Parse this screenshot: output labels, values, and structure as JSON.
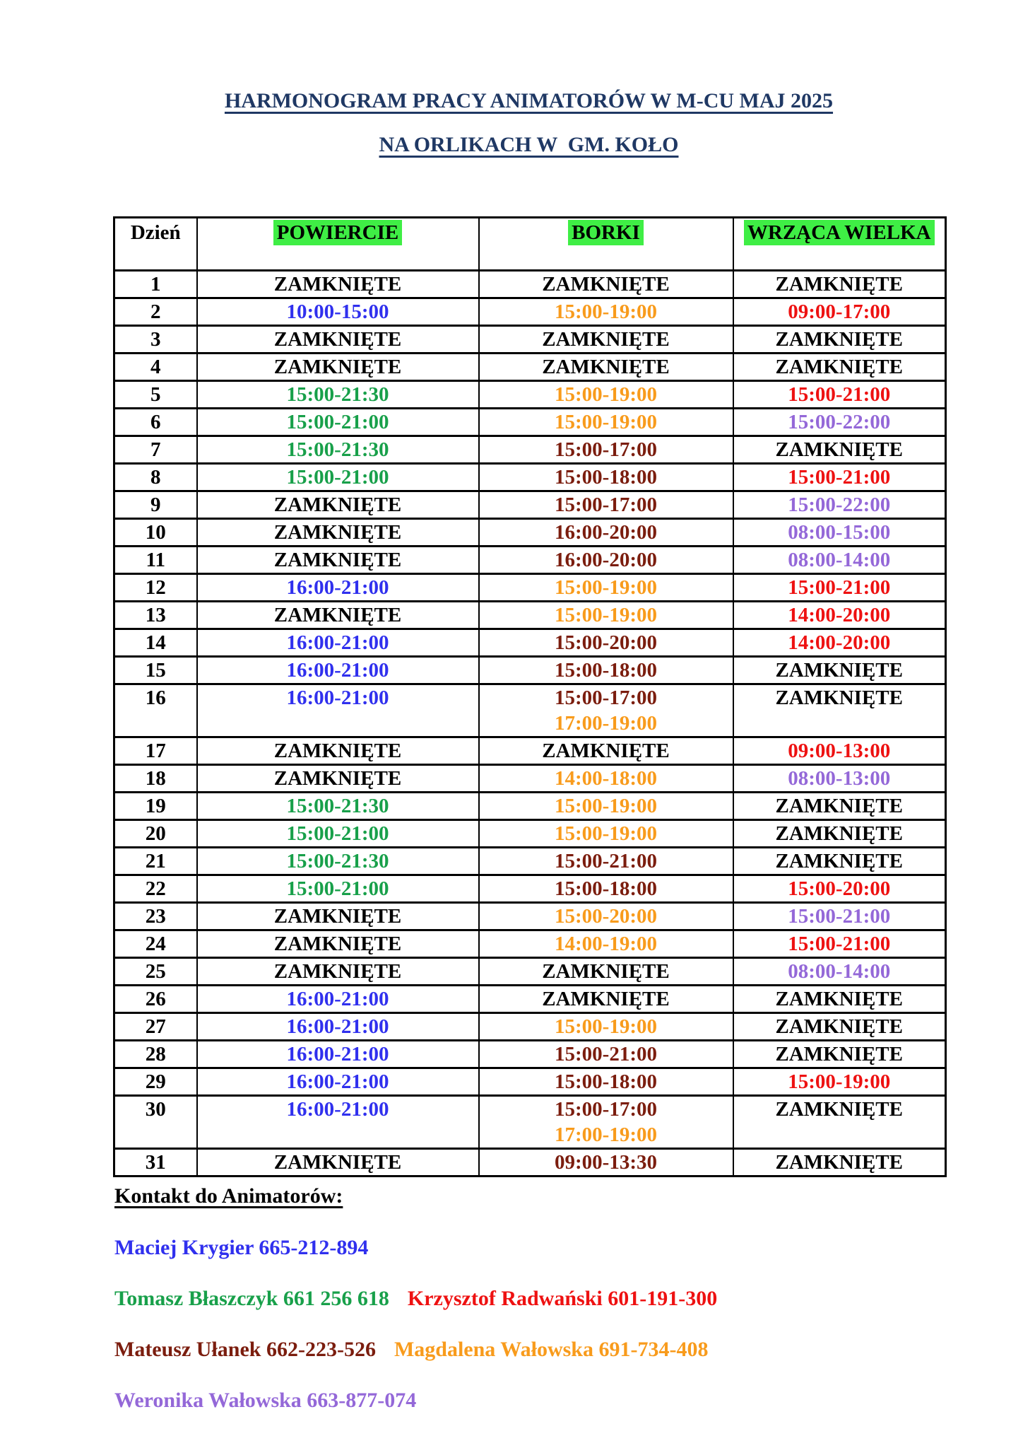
{
  "page": {
    "title_line1": "HARMONOGRAM PRACY ANIMATORÓW W M-CU MAJ 2025",
    "title_line2": "NA ORLIKACH W  GM. KOŁO"
  },
  "colors": {
    "title_navy": "#1F3864",
    "header_highlight_green": "#3FEE45",
    "black": "#000000",
    "blue": "#3030EE",
    "green": "#18A04A",
    "orange": "#F89B1C",
    "red": "#EE1111",
    "maroon": "#7B1D0E",
    "purple": "#9468D8"
  },
  "table": {
    "headers": [
      {
        "label": "Dzień",
        "highlighted": false
      },
      {
        "label": "POWIERCIE",
        "highlighted": true
      },
      {
        "label": "BORKI",
        "highlighted": true
      },
      {
        "label": "WRZĄCA WIELKA",
        "highlighted": true
      }
    ],
    "closed_label": "ZAMKNIĘTE",
    "rows": [
      {
        "day": "1",
        "cells": [
          [
            {
              "text": "ZAMKNIĘTE",
              "color": "black"
            }
          ],
          [
            {
              "text": "ZAMKNIĘTE",
              "color": "black"
            }
          ],
          [
            {
              "text": "ZAMKNIĘTE",
              "color": "black"
            }
          ]
        ]
      },
      {
        "day": "2",
        "cells": [
          [
            {
              "text": "10:00-15:00",
              "color": "blue"
            }
          ],
          [
            {
              "text": "15:00-19:00",
              "color": "orange"
            }
          ],
          [
            {
              "text": "09:00-17:00",
              "color": "red"
            }
          ]
        ]
      },
      {
        "day": "3",
        "cells": [
          [
            {
              "text": "ZAMKNIĘTE",
              "color": "black"
            }
          ],
          [
            {
              "text": "ZAMKNIĘTE",
              "color": "black"
            }
          ],
          [
            {
              "text": "ZAMKNIĘTE",
              "color": "black"
            }
          ]
        ]
      },
      {
        "day": "4",
        "cells": [
          [
            {
              "text": "ZAMKNIĘTE",
              "color": "black"
            }
          ],
          [
            {
              "text": "ZAMKNIĘTE",
              "color": "black"
            }
          ],
          [
            {
              "text": "ZAMKNIĘTE",
              "color": "black"
            }
          ]
        ]
      },
      {
        "day": "5",
        "cells": [
          [
            {
              "text": "15:00-21:30",
              "color": "green"
            }
          ],
          [
            {
              "text": "15:00-19:00",
              "color": "orange"
            }
          ],
          [
            {
              "text": "15:00-21:00",
              "color": "red"
            }
          ]
        ]
      },
      {
        "day": "6",
        "cells": [
          [
            {
              "text": "15:00-21:00",
              "color": "green"
            }
          ],
          [
            {
              "text": "15:00-19:00",
              "color": "orange"
            }
          ],
          [
            {
              "text": "15:00-22:00",
              "color": "purple"
            }
          ]
        ]
      },
      {
        "day": "7",
        "cells": [
          [
            {
              "text": "15:00-21:30",
              "color": "green"
            }
          ],
          [
            {
              "text": "15:00-17:00",
              "color": "maroon"
            }
          ],
          [
            {
              "text": "ZAMKNIĘTE",
              "color": "black"
            }
          ]
        ]
      },
      {
        "day": "8",
        "cells": [
          [
            {
              "text": "15:00-21:00",
              "color": "green"
            }
          ],
          [
            {
              "text": "15:00-18:00",
              "color": "maroon"
            }
          ],
          [
            {
              "text": "15:00-21:00",
              "color": "red"
            }
          ]
        ]
      },
      {
        "day": "9",
        "cells": [
          [
            {
              "text": "ZAMKNIĘTE",
              "color": "black"
            }
          ],
          [
            {
              "text": "15:00-17:00",
              "color": "maroon"
            }
          ],
          [
            {
              "text": "15:00-22:00",
              "color": "purple"
            }
          ]
        ]
      },
      {
        "day": "10",
        "cells": [
          [
            {
              "text": "ZAMKNIĘTE",
              "color": "black"
            }
          ],
          [
            {
              "text": "16:00-20:00",
              "color": "maroon"
            }
          ],
          [
            {
              "text": "08:00-15:00",
              "color": "purple"
            }
          ]
        ]
      },
      {
        "day": "11",
        "cells": [
          [
            {
              "text": "ZAMKNIĘTE",
              "color": "black"
            }
          ],
          [
            {
              "text": "16:00-20:00",
              "color": "maroon"
            }
          ],
          [
            {
              "text": "08:00-14:00",
              "color": "purple"
            }
          ]
        ]
      },
      {
        "day": "12",
        "cells": [
          [
            {
              "text": "16:00-21:00",
              "color": "blue"
            }
          ],
          [
            {
              "text": "15:00-19:00",
              "color": "orange"
            }
          ],
          [
            {
              "text": "15:00-21:00",
              "color": "red"
            }
          ]
        ]
      },
      {
        "day": "13",
        "cells": [
          [
            {
              "text": "ZAMKNIĘTE",
              "color": "black"
            }
          ],
          [
            {
              "text": "15:00-19:00",
              "color": "orange"
            }
          ],
          [
            {
              "text": "14:00-20:00",
              "color": "red"
            }
          ]
        ]
      },
      {
        "day": "14",
        "cells": [
          [
            {
              "text": "16:00-21:00",
              "color": "blue"
            }
          ],
          [
            {
              "text": "15:00-20:00",
              "color": "maroon"
            }
          ],
          [
            {
              "text": "14:00-20:00",
              "color": "red"
            }
          ]
        ]
      },
      {
        "day": "15",
        "cells": [
          [
            {
              "text": "16:00-21:00",
              "color": "blue"
            }
          ],
          [
            {
              "text": "15:00-18:00",
              "color": "maroon"
            }
          ],
          [
            {
              "text": "ZAMKNIĘTE",
              "color": "black"
            }
          ]
        ]
      },
      {
        "day": "16",
        "cells": [
          [
            {
              "text": "16:00-21:00",
              "color": "blue"
            }
          ],
          [
            {
              "text": "15:00-17:00",
              "color": "maroon"
            },
            {
              "text": "17:00-19:00",
              "color": "orange"
            }
          ],
          [
            {
              "text": "ZAMKNIĘTE",
              "color": "black"
            }
          ]
        ]
      },
      {
        "day": "17",
        "cells": [
          [
            {
              "text": "ZAMKNIĘTE",
              "color": "black"
            }
          ],
          [
            {
              "text": "ZAMKNIĘTE",
              "color": "black"
            }
          ],
          [
            {
              "text": "09:00-13:00",
              "color": "red"
            }
          ]
        ]
      },
      {
        "day": "18",
        "cells": [
          [
            {
              "text": "ZAMKNIĘTE",
              "color": "black"
            }
          ],
          [
            {
              "text": "14:00-18:00",
              "color": "orange"
            }
          ],
          [
            {
              "text": "08:00-13:00",
              "color": "purple"
            }
          ]
        ]
      },
      {
        "day": "19",
        "cells": [
          [
            {
              "text": "15:00-21:30",
              "color": "green"
            }
          ],
          [
            {
              "text": "15:00-19:00",
              "color": "orange"
            }
          ],
          [
            {
              "text": "ZAMKNIĘTE",
              "color": "black"
            }
          ]
        ]
      },
      {
        "day": "20",
        "cells": [
          [
            {
              "text": "15:00-21:00",
              "color": "green"
            }
          ],
          [
            {
              "text": "15:00-19:00",
              "color": "orange"
            }
          ],
          [
            {
              "text": "ZAMKNIĘTE",
              "color": "black"
            }
          ]
        ]
      },
      {
        "day": "21",
        "cells": [
          [
            {
              "text": "15:00-21:30",
              "color": "green"
            }
          ],
          [
            {
              "text": "15:00-21:00",
              "color": "maroon"
            }
          ],
          [
            {
              "text": "ZAMKNIĘTE",
              "color": "black"
            }
          ]
        ]
      },
      {
        "day": "22",
        "cells": [
          [
            {
              "text": "15:00-21:00",
              "color": "green"
            }
          ],
          [
            {
              "text": "15:00-18:00",
              "color": "maroon"
            }
          ],
          [
            {
              "text": "15:00-20:00",
              "color": "red"
            }
          ]
        ]
      },
      {
        "day": "23",
        "cells": [
          [
            {
              "text": "ZAMKNIĘTE",
              "color": "black"
            }
          ],
          [
            {
              "text": "15:00-20:00",
              "color": "orange"
            }
          ],
          [
            {
              "text": "15:00-21:00",
              "color": "purple"
            }
          ]
        ]
      },
      {
        "day": "24",
        "cells": [
          [
            {
              "text": "ZAMKNIĘTE",
              "color": "black"
            }
          ],
          [
            {
              "text": "14:00-19:00",
              "color": "orange"
            }
          ],
          [
            {
              "text": "15:00-21:00",
              "color": "red"
            }
          ]
        ]
      },
      {
        "day": "25",
        "cells": [
          [
            {
              "text": "ZAMKNIĘTE",
              "color": "black"
            }
          ],
          [
            {
              "text": "ZAMKNIĘTE",
              "color": "black"
            }
          ],
          [
            {
              "text": "08:00-14:00",
              "color": "purple"
            }
          ]
        ]
      },
      {
        "day": "26",
        "cells": [
          [
            {
              "text": "16:00-21:00",
              "color": "blue"
            }
          ],
          [
            {
              "text": "ZAMKNIĘTE",
              "color": "black"
            }
          ],
          [
            {
              "text": "ZAMKNIĘTE",
              "color": "black"
            }
          ]
        ]
      },
      {
        "day": "27",
        "cells": [
          [
            {
              "text": "16:00-21:00",
              "color": "blue"
            }
          ],
          [
            {
              "text": "15:00-19:00",
              "color": "orange"
            }
          ],
          [
            {
              "text": "ZAMKNIĘTE",
              "color": "black"
            }
          ]
        ]
      },
      {
        "day": "28",
        "cells": [
          [
            {
              "text": "16:00-21:00",
              "color": "blue"
            }
          ],
          [
            {
              "text": "15:00-21:00",
              "color": "maroon"
            }
          ],
          [
            {
              "text": "ZAMKNIĘTE",
              "color": "black"
            }
          ]
        ]
      },
      {
        "day": "29",
        "cells": [
          [
            {
              "text": "16:00-21:00",
              "color": "blue"
            }
          ],
          [
            {
              "text": "15:00-18:00",
              "color": "maroon"
            }
          ],
          [
            {
              "text": "15:00-19:00",
              "color": "red"
            }
          ]
        ]
      },
      {
        "day": "30",
        "cells": [
          [
            {
              "text": "16:00-21:00",
              "color": "blue"
            }
          ],
          [
            {
              "text": "15:00-17:00",
              "color": "maroon"
            },
            {
              "text": "17:00-19:00",
              "color": "orange"
            }
          ],
          [
            {
              "text": "ZAMKNIĘTE",
              "color": "black"
            }
          ]
        ]
      },
      {
        "day": "31",
        "cells": [
          [
            {
              "text": "ZAMKNIĘTE",
              "color": "black"
            }
          ],
          [
            {
              "text": "09:00-13:30",
              "color": "maroon"
            }
          ],
          [
            {
              "text": "ZAMKNIĘTE",
              "color": "black"
            }
          ]
        ]
      }
    ]
  },
  "contacts": {
    "heading": "Kontakt do Animatorów:",
    "lines": [
      [
        {
          "text": "Maciej Krygier 665-212-894",
          "color": "blue"
        }
      ],
      [
        {
          "text": "Tomasz Błaszczyk 661 256 618",
          "color": "green"
        },
        {
          "text": "Krzysztof Radwański 601-191-300",
          "color": "red"
        }
      ],
      [
        {
          "text": "Mateusz Ułanek 662-223-526",
          "color": "maroon"
        },
        {
          "text": "Magdalena Wałowska 691-734-408",
          "color": "orange"
        }
      ],
      [
        {
          "text": "Weronika Wałowska 663-877-074",
          "color": "purple"
        }
      ]
    ]
  }
}
